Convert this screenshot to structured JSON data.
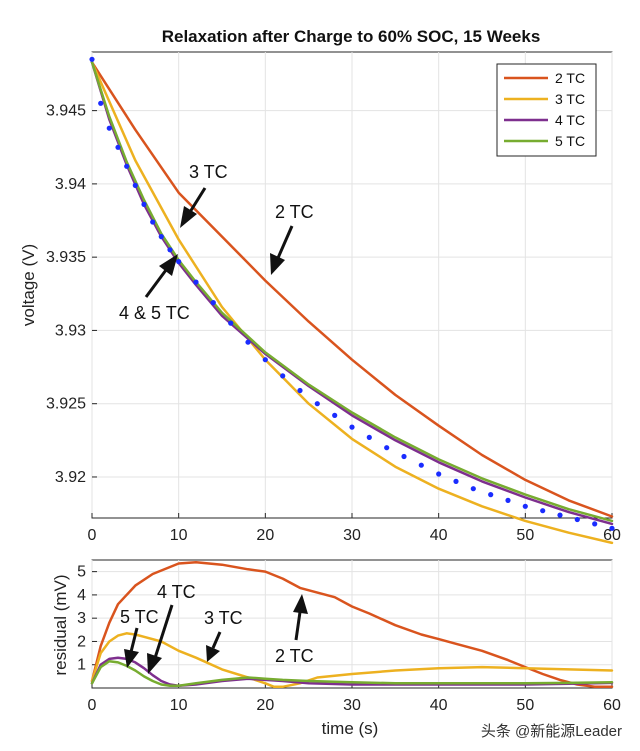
{
  "chart_data": [
    {
      "type": "line",
      "title": "Relaxation after Charge to 60% SOC, 15 Weeks",
      "xlabel": "",
      "ylabel": "voltage (V)",
      "xlim": [
        0,
        60
      ],
      "ylim": [
        3.9172,
        3.949
      ],
      "xticks": [
        "0",
        "10",
        "20",
        "30",
        "40",
        "50",
        "60"
      ],
      "yticks": [
        "3.92",
        "3.925",
        "3.93",
        "3.935",
        "3.94",
        "3.945"
      ],
      "grid": true,
      "legend_position": "top-right",
      "measured_color": "#1a2cff",
      "measured": {
        "x": [
          0,
          1,
          2,
          3,
          4,
          5,
          6,
          7,
          8,
          9,
          10,
          12,
          14,
          16,
          18,
          20,
          22,
          24,
          26,
          28,
          30,
          32,
          34,
          36,
          38,
          40,
          42,
          44,
          46,
          48,
          50,
          52,
          54,
          56,
          58,
          60
        ],
        "y": [
          3.9485,
          3.9455,
          3.9438,
          3.9425,
          3.9412,
          3.9399,
          3.9386,
          3.9374,
          3.9364,
          3.9355,
          3.9347,
          3.9333,
          3.9319,
          3.9305,
          3.9292,
          3.928,
          3.9269,
          3.9259,
          3.925,
          3.9242,
          3.9234,
          3.9227,
          3.922,
          3.9214,
          3.9208,
          3.9202,
          3.9197,
          3.9192,
          3.9188,
          3.9184,
          3.918,
          3.9177,
          3.9174,
          3.9171,
          3.9168,
          3.9165
        ]
      },
      "series": [
        {
          "name": "2 TC",
          "color": "#d9541e",
          "x": [
            0,
            5,
            10,
            15,
            20,
            25,
            30,
            35,
            40,
            45,
            50,
            55,
            60
          ],
          "y": [
            3.9483,
            3.9437,
            3.9394,
            3.9364,
            3.9334,
            3.9306,
            3.928,
            3.9256,
            3.9235,
            3.9215,
            3.9198,
            3.9184,
            3.9173
          ]
        },
        {
          "name": "3 TC",
          "color": "#edb120",
          "x": [
            0,
            5,
            10,
            15,
            20,
            25,
            30,
            35,
            40,
            45,
            50,
            55,
            60
          ],
          "y": [
            3.9483,
            3.9416,
            3.9362,
            3.9316,
            3.928,
            3.925,
            3.9226,
            3.9207,
            3.9192,
            3.918,
            3.917,
            3.9162,
            3.9155
          ]
        },
        {
          "name": "4 TC",
          "color": "#7e2f8e",
          "x": [
            0,
            2,
            4,
            6,
            8,
            10,
            12,
            15,
            20,
            25,
            30,
            35,
            40,
            45,
            50,
            55,
            60
          ],
          "y": [
            3.9483,
            3.9444,
            3.9413,
            3.9386,
            3.9364,
            3.9346,
            3.9331,
            3.931,
            3.9284,
            3.9262,
            3.9242,
            3.9225,
            3.921,
            3.9197,
            3.9186,
            3.9176,
            3.9168
          ]
        },
        {
          "name": "5 TC",
          "color": "#77ac30",
          "x": [
            0,
            2,
            4,
            6,
            8,
            10,
            12,
            15,
            20,
            25,
            30,
            35,
            40,
            45,
            50,
            55,
            60
          ],
          "y": [
            3.9483,
            3.9446,
            3.9415,
            3.9389,
            3.9366,
            3.9348,
            3.9333,
            3.9312,
            3.9285,
            3.9263,
            3.9244,
            3.9227,
            3.9212,
            3.9199,
            3.9188,
            3.9178,
            3.917
          ]
        }
      ],
      "annotations": [
        {
          "text": "3 TC",
          "x": 11.3,
          "y": 3.9403
        },
        {
          "text": "2 TC",
          "x": 22.9,
          "y": 3.9377
        },
        {
          "text": "4 & 5 TC",
          "x": 7.8,
          "y": 3.9311
        }
      ]
    },
    {
      "type": "line",
      "title": "",
      "xlabel": "time (s)",
      "ylabel": "residual (mV)",
      "xlim": [
        0,
        60
      ],
      "ylim": [
        0,
        5.5
      ],
      "xticks": [
        "0",
        "10",
        "20",
        "30",
        "40",
        "50",
        "60"
      ],
      "yticks": [
        "1",
        "2",
        "3",
        "4",
        "5"
      ],
      "grid": true,
      "series": [
        {
          "name": "2 TC",
          "color": "#d9541e",
          "x": [
            0,
            1,
            2,
            3,
            5,
            7,
            9,
            10,
            12,
            15,
            18,
            20,
            22,
            24,
            26,
            28,
            30,
            32,
            35,
            38,
            40,
            42,
            45,
            48,
            50,
            52,
            54,
            56,
            58,
            60
          ],
          "y": [
            0.3,
            1.8,
            2.8,
            3.6,
            4.4,
            4.9,
            5.2,
            5.35,
            5.4,
            5.3,
            5.1,
            5.0,
            4.7,
            4.3,
            4.1,
            3.9,
            3.5,
            3.2,
            2.7,
            2.3,
            2.1,
            1.9,
            1.6,
            1.2,
            0.9,
            0.6,
            0.35,
            0.15,
            0.05,
            0.05
          ]
        },
        {
          "name": "3 TC",
          "color": "#edb120",
          "x": [
            0,
            1,
            2,
            3,
            4,
            5,
            6,
            8,
            10,
            12,
            15,
            18,
            20,
            21,
            22,
            24,
            26,
            30,
            35,
            40,
            45,
            50,
            55,
            60
          ],
          "y": [
            0.3,
            1.5,
            2.0,
            2.25,
            2.35,
            2.3,
            2.2,
            2.0,
            1.6,
            1.3,
            0.8,
            0.45,
            0.2,
            0.05,
            0.05,
            0.2,
            0.45,
            0.6,
            0.75,
            0.85,
            0.9,
            0.85,
            0.8,
            0.75
          ]
        },
        {
          "name": "4 TC",
          "color": "#7e2f8e",
          "x": [
            0,
            1,
            2,
            3,
            4,
            5,
            6,
            7,
            8,
            9,
            10,
            12,
            15,
            18,
            20,
            22,
            25,
            30,
            35,
            40,
            45,
            50,
            55,
            60
          ],
          "y": [
            0.2,
            1.0,
            1.25,
            1.3,
            1.25,
            1.1,
            0.85,
            0.55,
            0.3,
            0.15,
            0.1,
            0.15,
            0.3,
            0.4,
            0.35,
            0.3,
            0.2,
            0.15,
            0.15,
            0.15,
            0.15,
            0.15,
            0.18,
            0.22
          ]
        },
        {
          "name": "5 TC",
          "color": "#77ac30",
          "x": [
            0,
            1,
            2,
            3,
            4,
            5,
            6,
            7,
            8,
            9,
            10,
            12,
            15,
            18,
            20,
            22,
            25,
            30,
            35,
            40,
            45,
            50,
            55,
            60
          ],
          "y": [
            0.2,
            0.9,
            1.15,
            1.1,
            0.95,
            0.75,
            0.5,
            0.3,
            0.15,
            0.1,
            0.1,
            0.2,
            0.35,
            0.45,
            0.4,
            0.35,
            0.3,
            0.25,
            0.2,
            0.2,
            0.2,
            0.2,
            0.22,
            0.25
          ]
        }
      ],
      "annotations": [
        {
          "text": "5 TC",
          "x": 3.5,
          "y": 3.5
        },
        {
          "text": "4 TC",
          "x": 10.0,
          "y": 4.2
        },
        {
          "text": "3 TC",
          "x": 15.5,
          "y": 3.0
        },
        {
          "text": "2 TC",
          "x": 26.0,
          "y": 1.4
        }
      ]
    }
  ],
  "watermark": "头条 @新能源Leader"
}
